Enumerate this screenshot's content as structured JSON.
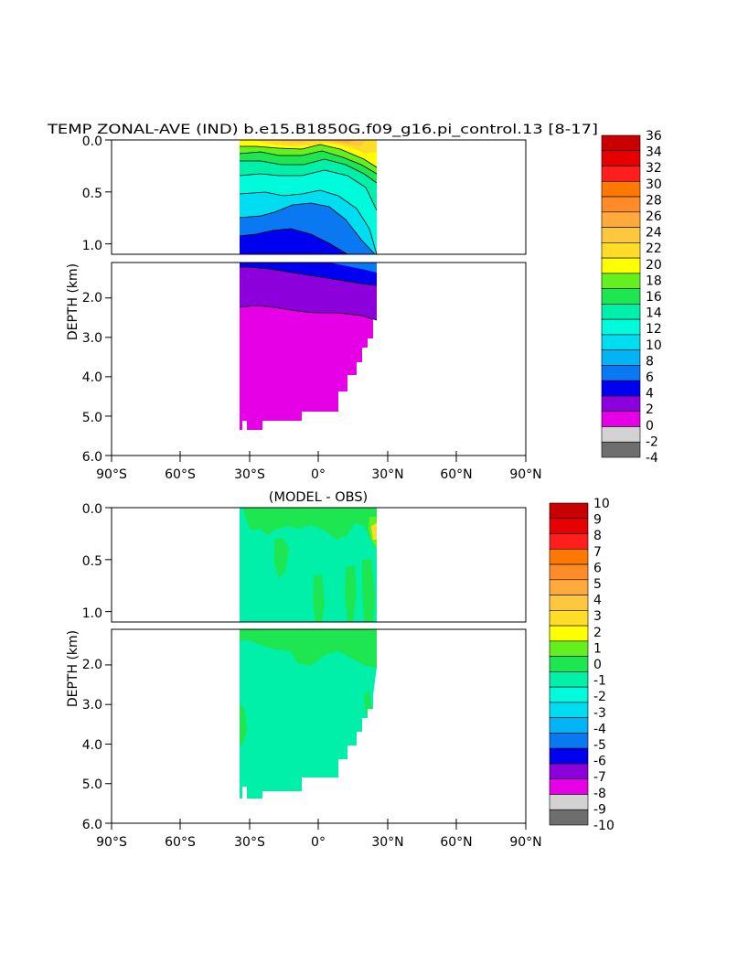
{
  "chart_data": [
    {
      "type": "heatmap",
      "title": "TEMP ZONAL-AVE (IND) b.e15.B1850G.f09_g16.pi_control.13 [8-17]",
      "ylabel": "DEPTH (km)",
      "xlabel": "",
      "x_ticks": [
        "90°S",
        "60°S",
        "30°S",
        "0°",
        "30°N",
        "60°N",
        "90°N"
      ],
      "x_range": [
        -90,
        90
      ],
      "upper_panel": {
        "y_range": [
          0.0,
          1.1
        ],
        "y_ticks": [
          "0.0",
          "0.5",
          "1.0"
        ]
      },
      "lower_panel": {
        "y_range": [
          1.1,
          6.0
        ],
        "y_ticks": [
          "2.0",
          "3.0",
          "4.0",
          "5.0",
          "6.0"
        ]
      },
      "colorbar": {
        "labels": [
          "36",
          "34",
          "32",
          "30",
          "28",
          "26",
          "24",
          "22",
          "20",
          "18",
          "16",
          "14",
          "12",
          "10",
          "8",
          "6",
          "4",
          "2",
          "0",
          "-2",
          "-4"
        ],
        "colors": [
          "#c80000",
          "#e60000",
          "#ff1e1e",
          "#ff7800",
          "#ff8c28",
          "#ffaa3c",
          "#ffc83c",
          "#ffdc28",
          "#ffff00",
          "#64f01e",
          "#1ee650",
          "#00f0aa",
          "#00fadc",
          "#00dcf0",
          "#00b4f5",
          "#0a78f0",
          "#0000f0",
          "#8c00dc",
          "#e600e6",
          "#d2d2d2",
          "#6e6e6e"
        ]
      },
      "data_extent": {
        "lon": [
          -35,
          25
        ],
        "depth_max_km": 5.4
      }
    },
    {
      "type": "heatmap",
      "title": "(MODEL - OBS)",
      "ylabel": "DEPTH (km)",
      "xlabel": "",
      "x_ticks": [
        "90°S",
        "60°S",
        "30°S",
        "0°",
        "30°N",
        "60°N",
        "90°N"
      ],
      "x_range": [
        -90,
        90
      ],
      "upper_panel": {
        "y_range": [
          0.0,
          1.1
        ],
        "y_ticks": [
          "0.0",
          "0.5",
          "1.0"
        ]
      },
      "lower_panel": {
        "y_range": [
          1.1,
          6.0
        ],
        "y_ticks": [
          "2.0",
          "3.0",
          "4.0",
          "5.0",
          "6.0"
        ]
      },
      "colorbar": {
        "labels": [
          "10",
          "9",
          "8",
          "7",
          "6",
          "5",
          "4",
          "3",
          "2",
          "1",
          "0",
          "-1",
          "-2",
          "-3",
          "-4",
          "-5",
          "-6",
          "-7",
          "-8",
          "-9",
          "-10"
        ],
        "colors": [
          "#c80000",
          "#e60000",
          "#ff1e1e",
          "#ff7800",
          "#ff8c28",
          "#ffaa3c",
          "#ffc83c",
          "#ffdc28",
          "#ffff00",
          "#64f01e",
          "#1ee650",
          "#00f0aa",
          "#00fadc",
          "#00dcf0",
          "#00b4f5",
          "#0a78f0",
          "#0000f0",
          "#8c00dc",
          "#e600e6",
          "#d2d2d2",
          "#6e6e6e"
        ]
      },
      "data_extent": {
        "lon": [
          -35,
          25
        ],
        "depth_max_km": 5.4
      }
    }
  ]
}
